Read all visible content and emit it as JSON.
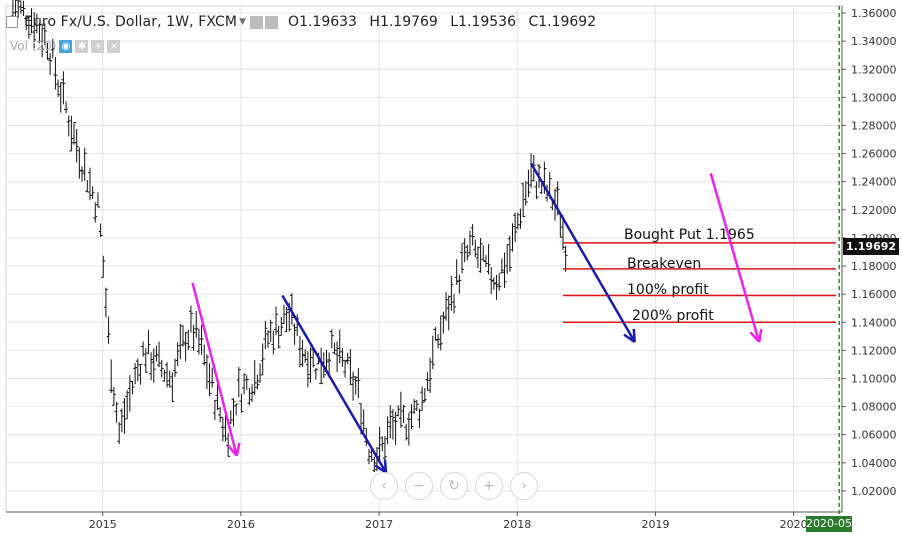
{
  "legend": {
    "symbol": "Euro Fx/U.S. Dollar, 1W, FXCM",
    "open": "O1.19633",
    "high": "H1.19769",
    "low": "L1.19536",
    "close": "C1.19692"
  },
  "volume_label": "Vol (20)",
  "nav_buttons": [
    "‹",
    "−",
    "↻",
    "+",
    "›"
  ],
  "last_price_tag": "1.19692",
  "date_tag": "2020-05",
  "annotations": {
    "bought_put": "Bought Put 1.1965",
    "breakeven": "Breakeven",
    "profit_100": "100% profit",
    "profit_200": "200% profit"
  },
  "colors": {
    "bars": "#111111",
    "grid": "#e4e4e4",
    "blue_arrow": "#1a1ab0",
    "magenta_arrow": "#ee22ee",
    "red_line": "#e01010",
    "price_tag_bg": "#111111",
    "date_tag_bg": "#2b7a2b",
    "green_dashed": "#2b8a2b"
  },
  "chart_data": {
    "type": "ohlc",
    "x_ticks": [
      "2015",
      "2016",
      "2017",
      "2018",
      "2019",
      "2020"
    ],
    "y_ticks": [
      1.36,
      1.34,
      1.32,
      1.3,
      1.28,
      1.26,
      1.24,
      1.22,
      1.2,
      1.18,
      1.16,
      1.14,
      1.12,
      1.1,
      1.08,
      1.06,
      1.04,
      1.02
    ],
    "ylim": [
      1.005,
      1.365
    ],
    "xlim": [
      2014.3,
      2020.35
    ],
    "price_path": [
      [
        2014.35,
        1.365
      ],
      [
        2014.5,
        1.355
      ],
      [
        2014.6,
        1.34
      ],
      [
        2014.68,
        1.31
      ],
      [
        2014.8,
        1.27
      ],
      [
        2014.9,
        1.24
      ],
      [
        2014.97,
        1.22
      ],
      [
        2015.0,
        1.185
      ],
      [
        2015.05,
        1.12
      ],
      [
        2015.12,
        1.06
      ],
      [
        2015.2,
        1.09
      ],
      [
        2015.3,
        1.12
      ],
      [
        2015.4,
        1.11
      ],
      [
        2015.5,
        1.1
      ],
      [
        2015.6,
        1.13
      ],
      [
        2015.65,
        1.135
      ],
      [
        2015.72,
        1.12
      ],
      [
        2015.8,
        1.09
      ],
      [
        2015.9,
        1.06
      ],
      [
        2015.98,
        1.09
      ],
      [
        2016.1,
        1.1
      ],
      [
        2016.2,
        1.13
      ],
      [
        2016.3,
        1.14
      ],
      [
        2016.35,
        1.145
      ],
      [
        2016.45,
        1.12
      ],
      [
        2016.55,
        1.11
      ],
      [
        2016.65,
        1.12
      ],
      [
        2016.75,
        1.11
      ],
      [
        2016.85,
        1.09
      ],
      [
        2016.93,
        1.05
      ],
      [
        2017.0,
        1.045
      ],
      [
        2017.08,
        1.065
      ],
      [
        2017.2,
        1.07
      ],
      [
        2017.3,
        1.08
      ],
      [
        2017.4,
        1.12
      ],
      [
        2017.5,
        1.15
      ],
      [
        2017.6,
        1.18
      ],
      [
        2017.67,
        1.195
      ],
      [
        2017.75,
        1.18
      ],
      [
        2017.85,
        1.17
      ],
      [
        2017.95,
        1.19
      ],
      [
        2018.05,
        1.23
      ],
      [
        2018.1,
        1.245
      ],
      [
        2018.2,
        1.235
      ],
      [
        2018.3,
        1.22
      ],
      [
        2018.35,
        1.195
      ]
    ],
    "drawings": {
      "horizontal_lines": [
        1.1965,
        1.178,
        1.159,
        1.14
      ],
      "blue_arrows": [
        {
          "from": [
            2016.3,
            1.159
          ],
          "to": [
            2017.05,
            1.033
          ]
        },
        {
          "from": [
            2018.1,
            1.253
          ],
          "to": [
            2018.85,
            1.126
          ]
        }
      ],
      "magenta_arrows": [
        {
          "from": [
            2015.65,
            1.168
          ],
          "to": [
            2015.97,
            1.045
          ]
        },
        {
          "from": [
            2019.4,
            1.246
          ],
          "to": [
            2019.75,
            1.126
          ]
        }
      ]
    }
  }
}
